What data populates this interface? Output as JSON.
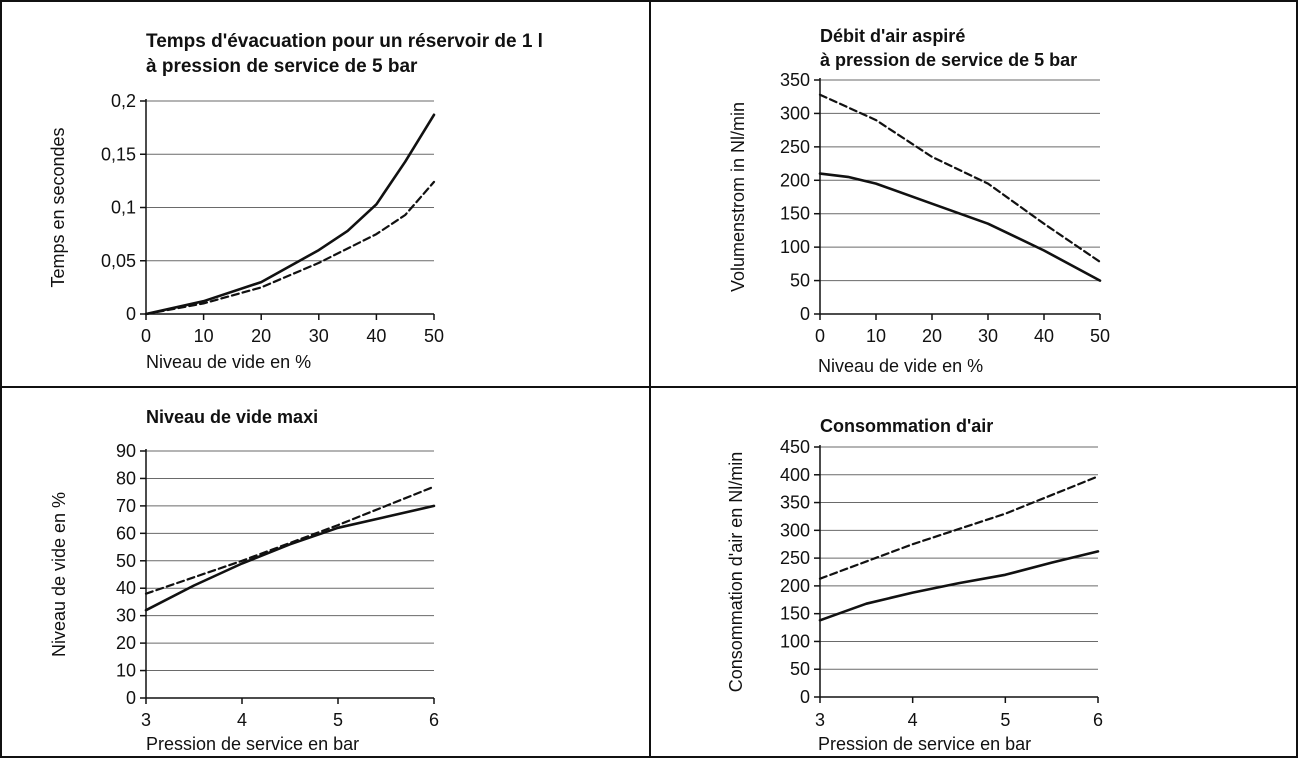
{
  "chart_data": [
    {
      "type": "line",
      "title": [
        "Temps d'évacuation pour un réservoir de 1 l",
        "à pression de service de 5 bar"
      ],
      "xlabel": "Niveau de vide en %",
      "ylabel": "Temps en secondes",
      "xlim": [
        0,
        50
      ],
      "ylim": [
        0,
        0.2
      ],
      "xticks": [
        "0",
        "10",
        "20",
        "30",
        "40",
        "50"
      ],
      "yticks": [
        "0",
        "0,05",
        "0,1",
        "0,15",
        "0,2"
      ],
      "grid": "horizontal",
      "series": [
        {
          "style": "solid",
          "x": [
            0,
            10,
            20,
            30,
            35,
            40,
            45,
            50
          ],
          "y": [
            0,
            0.012,
            0.03,
            0.06,
            0.078,
            0.103,
            0.143,
            0.187
          ]
        },
        {
          "style": "dashed",
          "x": [
            0,
            10,
            20,
            30,
            40,
            45,
            50
          ],
          "y": [
            0,
            0.01,
            0.025,
            0.048,
            0.075,
            0.093,
            0.124
          ]
        }
      ]
    },
    {
      "type": "line",
      "title": [
        "Débit d'air aspiré",
        "à pression de service de 5 bar"
      ],
      "xlabel": "Niveau de vide en %",
      "ylabel": "Volumenstrom in Nl/min",
      "xlim": [
        0,
        50
      ],
      "ylim": [
        0,
        350
      ],
      "xticks": [
        "0",
        "10",
        "20",
        "30",
        "40",
        "50"
      ],
      "yticks": [
        "0",
        "50",
        "100",
        "150",
        "200",
        "250",
        "300",
        "350"
      ],
      "grid": "horizontal",
      "series": [
        {
          "style": "solid",
          "x": [
            0,
            5,
            10,
            20,
            30,
            35,
            40,
            50
          ],
          "y": [
            210,
            205,
            195,
            165,
            135,
            115,
            95,
            50
          ]
        },
        {
          "style": "dashed",
          "x": [
            0,
            10,
            20,
            30,
            40,
            50
          ],
          "y": [
            328,
            290,
            235,
            195,
            135,
            78
          ]
        }
      ]
    },
    {
      "type": "line",
      "title": [
        "Niveau de vide maxi"
      ],
      "xlabel": "Pression de service en bar",
      "ylabel": "Niveau de vide en %",
      "xlim": [
        3,
        6
      ],
      "ylim": [
        0,
        90
      ],
      "xticks": [
        "3",
        "4",
        "5",
        "6"
      ],
      "yticks": [
        "0",
        "10",
        "20",
        "30",
        "40",
        "50",
        "60",
        "70",
        "80",
        "90"
      ],
      "grid": "horizontal",
      "series": [
        {
          "style": "solid",
          "x": [
            3,
            3.5,
            4,
            4.5,
            5,
            5.5,
            6
          ],
          "y": [
            32,
            41,
            49,
            56,
            62,
            66,
            70
          ]
        },
        {
          "style": "dashed",
          "x": [
            3,
            4,
            5,
            6
          ],
          "y": [
            38,
            50,
            63,
            77
          ]
        }
      ]
    },
    {
      "type": "line",
      "title": [
        "Consommation d'air"
      ],
      "xlabel": "Pression de service en bar",
      "ylabel": "Consommation d'air en Nl/min",
      "xlim": [
        3,
        6
      ],
      "ylim": [
        0,
        450
      ],
      "xticks": [
        "3",
        "4",
        "5",
        "6"
      ],
      "yticks": [
        "0",
        "50",
        "100",
        "150",
        "200",
        "250",
        "300",
        "350",
        "400",
        "450"
      ],
      "grid": "horizontal",
      "series": [
        {
          "style": "solid",
          "x": [
            3,
            3.5,
            4,
            4.5,
            5,
            5.5,
            6
          ],
          "y": [
            138,
            168,
            188,
            205,
            220,
            242,
            262
          ]
        },
        {
          "style": "dashed",
          "x": [
            3,
            4,
            5,
            6
          ],
          "y": [
            213,
            275,
            330,
            397
          ]
        }
      ]
    }
  ]
}
